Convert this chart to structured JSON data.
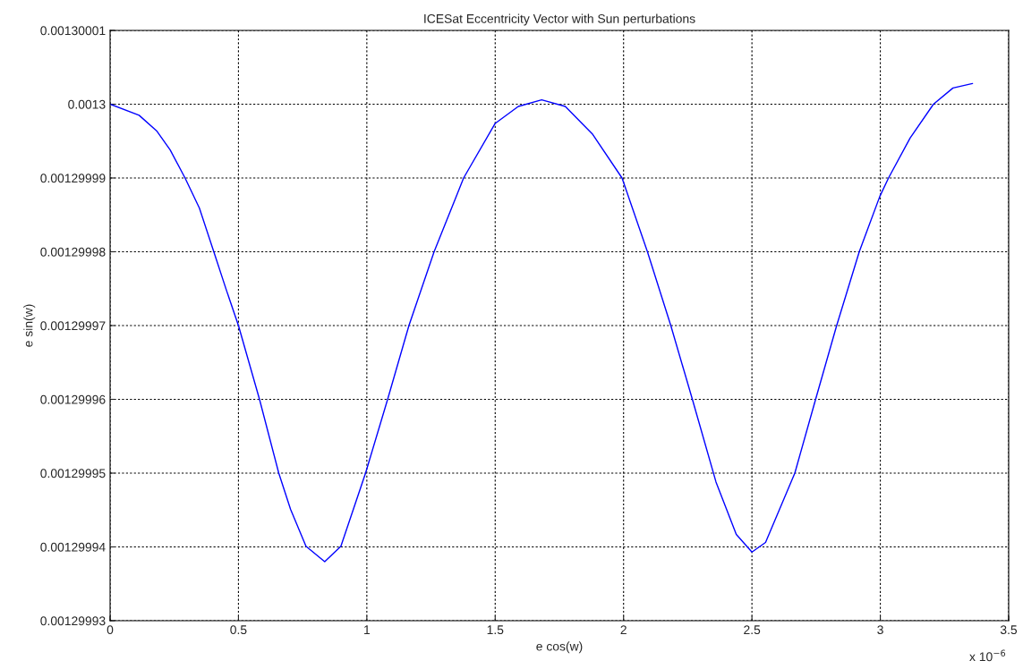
{
  "chart_data": {
    "type": "line",
    "title": "ICESat Eccentricity Vector with Sun perturbations",
    "xlabel": "e cos(w)",
    "ylabel": "e sin(w)",
    "annotations": [
      "x 10$^{−6}$"
    ],
    "series": [
      {
        "color": "#0000ff",
        "x": [
          0,
          0.113,
          0.181,
          0.234,
          0.292,
          0.348,
          0.404,
          0.453,
          0.5,
          0.582,
          0.657,
          0.703,
          0.763,
          0.836,
          0.899,
          0.995,
          1.081,
          1.164,
          1.262,
          1.377,
          1.5,
          1.59,
          1.681,
          1.773,
          1.88,
          1.994,
          2.093,
          2.184,
          2.268,
          2.36,
          2.439,
          2.5,
          2.553,
          2.667,
          2.748,
          2.83,
          2.918,
          2.998,
          3.032,
          3.116,
          3.207,
          3.283,
          3.359
        ],
        "values": [
          0.0013,
          0.0012999985,
          0.0012999964,
          0.0012999938,
          0.00129999,
          0.0012999859,
          0.00129998,
          0.0012999748,
          0.00129997,
          0.00129996,
          0.00129995,
          0.0012999451,
          0.0012999401,
          0.001299938,
          0.0012999401,
          0.00129995,
          0.00129996,
          0.00129997,
          0.00129998,
          0.00129999,
          0.0012999974,
          0.0012999997,
          0.0013000006,
          0.0012999997,
          0.0012999959,
          0.00129999,
          0.00129998,
          0.00129997,
          0.00129996,
          0.0012999488,
          0.0012999417,
          0.0012999393,
          0.0012999406,
          0.00129995,
          0.00129996,
          0.00129997,
          0.00129998,
          0.0012999875,
          0.00129999,
          0.0012999954,
          0.0013,
          0.0013000022,
          0.0013000028
        ]
      }
    ],
    "xlim": [
      0,
      3.5
    ],
    "xticks": [
      0,
      0.5,
      1,
      1.5,
      2,
      2.5,
      3,
      3.5
    ],
    "ylim": [
      0.00129993,
      0.00130001
    ],
    "yticks": [
      {
        "value": 0.00129993,
        "label": "0.00129993"
      },
      {
        "value": 0.00129994,
        "label": "0.00129994"
      },
      {
        "value": 0.00129995,
        "label": "0.00129995"
      },
      {
        "value": 0.00129996,
        "label": "0.00129996"
      },
      {
        "value": 0.00129997,
        "label": "0.00129997"
      },
      {
        "value": 0.00129998,
        "label": "0.00129998"
      },
      {
        "value": 0.00129999,
        "label": "0.00129999"
      },
      {
        "value": 0.0013,
        "label": "0.0013"
      },
      {
        "value": 0.00130001,
        "label": "0.00130001"
      }
    ],
    "grid": true,
    "line_style": "solid"
  }
}
